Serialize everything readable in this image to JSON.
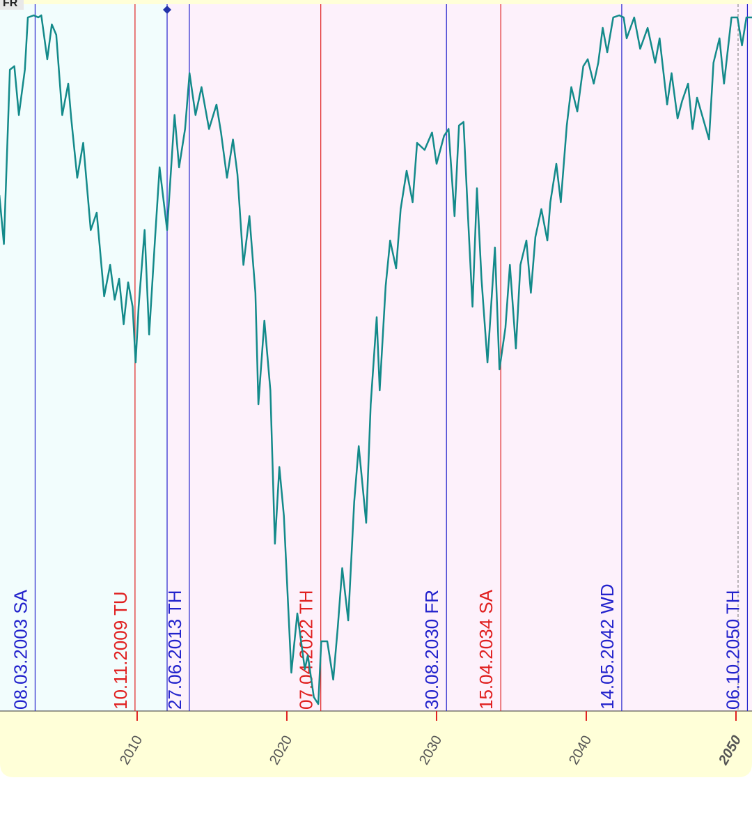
{
  "chart_data": {
    "type": "line",
    "corner_label": "FR",
    "xlim": [
      2000.84,
      2051.07
    ],
    "ylim": [
      0,
      100
    ],
    "xticks": [
      2010,
      2020,
      2030,
      2040,
      2050
    ],
    "x": [
      2000.8,
      2001.1,
      2001.5,
      2001.8,
      2002.1,
      2002.5,
      2002.7,
      2003.1,
      2003.4,
      2003.6,
      2004.0,
      2004.3,
      2004.6,
      2005.0,
      2005.4,
      2005.6,
      2006.0,
      2006.4,
      2006.9,
      2007.3,
      2007.8,
      2008.2,
      2008.5,
      2008.8,
      2009.1,
      2009.4,
      2009.7,
      2009.9,
      2010.1,
      2010.5,
      2010.8,
      2011.2,
      2011.5,
      2012.0,
      2012.5,
      2012.8,
      2013.2,
      2013.5,
      2013.9,
      2014.3,
      2014.8,
      2015.3,
      2015.6,
      2016.0,
      2016.4,
      2016.7,
      2017.1,
      2017.5,
      2017.9,
      2018.1,
      2018.5,
      2018.9,
      2019.2,
      2019.5,
      2019.8,
      2020.3,
      2020.7,
      2021.2,
      2021.4,
      2021.8,
      2022.1,
      2022.3,
      2022.7,
      2023.1,
      2023.4,
      2023.7,
      2024.1,
      2024.5,
      2024.8,
      2025.3,
      2025.6,
      2026.0,
      2026.2,
      2026.6,
      2026.9,
      2027.3,
      2027.6,
      2028.0,
      2028.4,
      2028.7,
      2029.2,
      2029.7,
      2030.0,
      2030.5,
      2030.8,
      2031.2,
      2031.5,
      2031.8,
      2032.1,
      2032.4,
      2032.7,
      2033.0,
      2033.4,
      2033.9,
      2034.2,
      2034.6,
      2034.9,
      2035.3,
      2035.6,
      2036.0,
      2036.3,
      2036.6,
      2037.0,
      2037.4,
      2037.6,
      2038.0,
      2038.3,
      2038.7,
      2039.0,
      2039.4,
      2039.8,
      2040.1,
      2040.5,
      2040.8,
      2041.1,
      2041.4,
      2041.8,
      2042.2,
      2042.5,
      2042.7,
      2043.2,
      2043.6,
      2044.1,
      2044.6,
      2044.9,
      2045.4,
      2045.7,
      2046.1,
      2046.4,
      2046.8,
      2047.1,
      2047.4,
      2047.8,
      2048.2,
      2048.5,
      2048.9,
      2049.2,
      2049.7,
      2050.1,
      2050.4,
      2050.7,
      2051.1
    ],
    "series": [
      {
        "color": "#138a8a",
        "values": [
          74,
          67,
          92,
          92.5,
          85.5,
          92,
          99.5,
          99.8,
          99.5,
          99.8,
          93.5,
          98.5,
          97,
          85.5,
          90,
          85,
          76.5,
          81.5,
          69,
          71.5,
          59.5,
          64,
          59,
          62,
          55.5,
          61.5,
          58,
          50,
          58,
          69,
          54,
          68,
          78,
          69,
          85.5,
          78,
          83.5,
          91.5,
          85.5,
          89.5,
          83.5,
          87,
          83,
          76.5,
          82,
          77,
          64,
          71,
          60,
          44,
          56,
          46,
          24,
          35,
          28,
          5.5,
          14,
          6,
          8,
          2,
          1,
          10,
          10,
          4.5,
          12,
          20.5,
          13,
          30,
          38,
          27,
          44,
          56.5,
          46,
          61,
          67.5,
          63.5,
          72,
          77.5,
          73,
          81.5,
          80.5,
          83,
          78.5,
          82.5,
          83.5,
          71,
          84,
          84.5,
          71,
          58,
          75,
          62,
          50,
          66.5,
          49,
          55,
          64,
          52,
          64,
          67.5,
          60,
          68,
          72,
          67.5,
          73,
          78.5,
          73,
          84,
          89.5,
          86,
          92.5,
          93.5,
          90,
          93,
          98,
          94.5,
          99.5,
          99.8,
          99.5,
          96.5,
          99.5,
          95,
          98,
          93,
          96.5,
          87,
          91.5,
          85,
          87.5,
          90,
          83.5,
          88,
          85,
          82,
          93,
          96.5,
          90,
          99.5,
          99.5,
          95.5,
          99.5,
          99.5
        ]
      }
    ],
    "events": [
      {
        "label": "08.03.2003 SA",
        "color": "#2222cc"
      },
      {
        "label": "10.11.2009 TU",
        "color": "#e02020"
      },
      {
        "label": "27.06.2013 TH",
        "color": "#2222cc"
      },
      {
        "label": "07.04.2022 TH",
        "color": "#e02020"
      },
      {
        "label": "30.08.2030 FR",
        "color": "#2222cc"
      },
      {
        "label": "15.04.2034 SA",
        "color": "#e02020"
      },
      {
        "label": "14.05.2042 WD",
        "color": "#2222cc"
      },
      {
        "label": "06.10.2050 TH",
        "color": "#2222cc"
      }
    ]
  }
}
